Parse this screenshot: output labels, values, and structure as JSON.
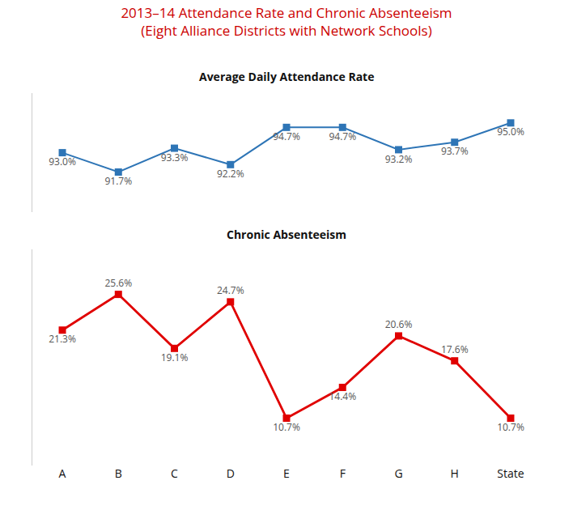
{
  "chart_data": {
    "type": "line",
    "title": "2013–14 Attendance Rate and Chronic Absenteeism",
    "subtitle": "(Eight Alliance Districts with Network Schools)",
    "categories": [
      "A",
      "B",
      "C",
      "D",
      "E",
      "F",
      "G",
      "H",
      "State"
    ],
    "series": [
      {
        "name": "Average Daily Attendance Rate",
        "color": "#2e75b6",
        "marker": "square",
        "values": [
          93.0,
          91.7,
          93.3,
          92.2,
          94.7,
          94.7,
          93.2,
          93.7,
          95.0
        ],
        "value_labels": [
          "93.0%",
          "91.7%",
          "93.3%",
          "92.2%",
          "94.7%",
          "94.7%",
          "93.2%",
          "93.7%",
          "95.0%"
        ]
      },
      {
        "name": "Chronic Absenteeism",
        "color": "#e00000",
        "marker": "square",
        "axis": "y2",
        "values": [
          21.3,
          25.6,
          19.1,
          24.7,
          10.7,
          14.4,
          20.6,
          17.6,
          10.7
        ],
        "value_labels": [
          "21.3%",
          "25.6%",
          "19.1%",
          "24.7%",
          "10.7%",
          "14.4%",
          "20.6%",
          "17.6%",
          "10.7%"
        ]
      }
    ],
    "ylim": [
      89,
      97
    ],
    "y2lim": [
      5,
      31
    ],
    "data_labels": true,
    "tick_labels": "x",
    "grid": false
  }
}
